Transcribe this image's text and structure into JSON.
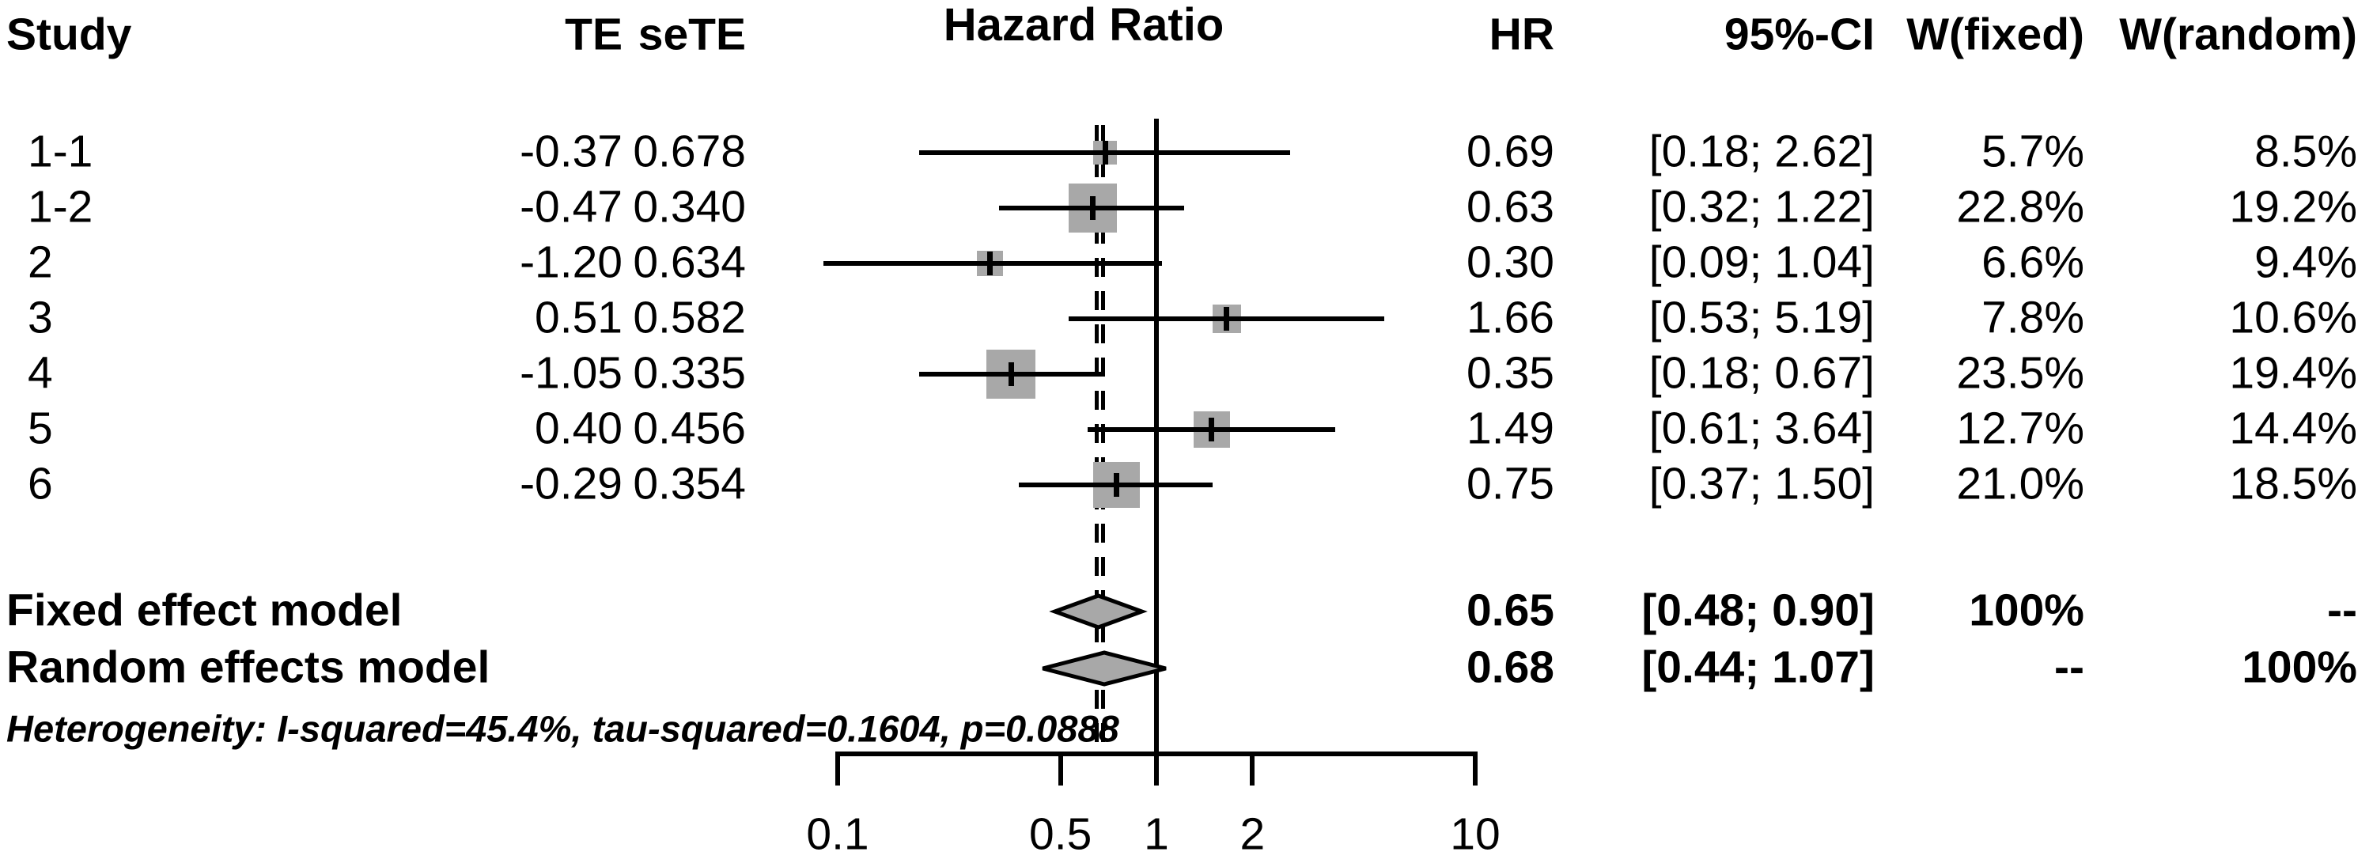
{
  "header": {
    "study": "Study",
    "te": "TE",
    "sete": "seTE",
    "hazard_ratio": "Hazard Ratio",
    "hr": "HR",
    "ci": "95%-CI",
    "w_fixed": "W(fixed)",
    "w_random": "W(random)"
  },
  "chart_data": {
    "type": "forest",
    "title": "Hazard Ratio",
    "x_axis": {
      "scale": "log10",
      "range": [
        0.1,
        10
      ],
      "ticks": [
        0.1,
        0.5,
        1,
        2,
        10
      ],
      "tick_labels": [
        "0.1",
        "0.5",
        "1",
        "2",
        "10"
      ],
      "null_line": 1,
      "grid": false
    },
    "studies": [
      {
        "label": "1-1",
        "te": "-0.37",
        "sete": "0.678",
        "hr": 0.69,
        "ci_low": 0.18,
        "ci_high": 2.62,
        "hr_text": "0.69",
        "ci_text": "[0.18; 2.62]",
        "w_fixed": 5.7,
        "w_fixed_text": "5.7%",
        "w_random": 8.5,
        "w_random_text": "8.5%"
      },
      {
        "label": "1-2",
        "te": "-0.47",
        "sete": "0.340",
        "hr": 0.63,
        "ci_low": 0.32,
        "ci_high": 1.22,
        "hr_text": "0.63",
        "ci_text": "[0.32; 1.22]",
        "w_fixed": 22.8,
        "w_fixed_text": "22.8%",
        "w_random": 19.2,
        "w_random_text": "19.2%"
      },
      {
        "label": "2",
        "te": "-1.20",
        "sete": "0.634",
        "hr": 0.3,
        "ci_low": 0.09,
        "ci_high": 1.04,
        "hr_text": "0.30",
        "ci_text": "[0.09; 1.04]",
        "w_fixed": 6.6,
        "w_fixed_text": "6.6%",
        "w_random": 9.4,
        "w_random_text": "9.4%"
      },
      {
        "label": "3",
        "te": "0.51",
        "sete": "0.582",
        "hr": 1.66,
        "ci_low": 0.53,
        "ci_high": 5.19,
        "hr_text": "1.66",
        "ci_text": "[0.53; 5.19]",
        "w_fixed": 7.8,
        "w_fixed_text": "7.8%",
        "w_random": 10.6,
        "w_random_text": "10.6%"
      },
      {
        "label": "4",
        "te": "-1.05",
        "sete": "0.335",
        "hr": 0.35,
        "ci_low": 0.18,
        "ci_high": 0.67,
        "hr_text": "0.35",
        "ci_text": "[0.18; 0.67]",
        "w_fixed": 23.5,
        "w_fixed_text": "23.5%",
        "w_random": 19.4,
        "w_random_text": "19.4%"
      },
      {
        "label": "5",
        "te": "0.40",
        "sete": "0.456",
        "hr": 1.49,
        "ci_low": 0.61,
        "ci_high": 3.64,
        "hr_text": "1.49",
        "ci_text": "[0.61; 3.64]",
        "w_fixed": 12.7,
        "w_fixed_text": "12.7%",
        "w_random": 14.4,
        "w_random_text": "14.4%"
      },
      {
        "label": "6",
        "te": "-0.29",
        "sete": "0.354",
        "hr": 0.75,
        "ci_low": 0.37,
        "ci_high": 1.5,
        "hr_text": "0.75",
        "ci_text": "[0.37; 1.50]",
        "w_fixed": 21.0,
        "w_fixed_text": "21.0%",
        "w_random": 18.5,
        "w_random_text": "18.5%"
      }
    ],
    "summaries": [
      {
        "label": "Fixed effect model",
        "hr": 0.65,
        "ci_low": 0.48,
        "ci_high": 0.9,
        "hr_text": "0.65",
        "ci_text": "[0.48; 0.90]",
        "w_fixed_text": "100%",
        "w_random_text": "--"
      },
      {
        "label": "Random effects model",
        "hr": 0.68,
        "ci_low": 0.44,
        "ci_high": 1.07,
        "hr_text": "0.68",
        "ci_text": "[0.44; 1.07]",
        "w_fixed_text": "--",
        "w_random_text": "100%"
      }
    ],
    "heterogeneity": "Heterogeneity: I-squared=45.4%, tau-squared=0.1604, p=0.0888"
  },
  "colors": {
    "marker_fill": "#a8a8a8",
    "line": "#000000",
    "background": "#ffffff"
  }
}
